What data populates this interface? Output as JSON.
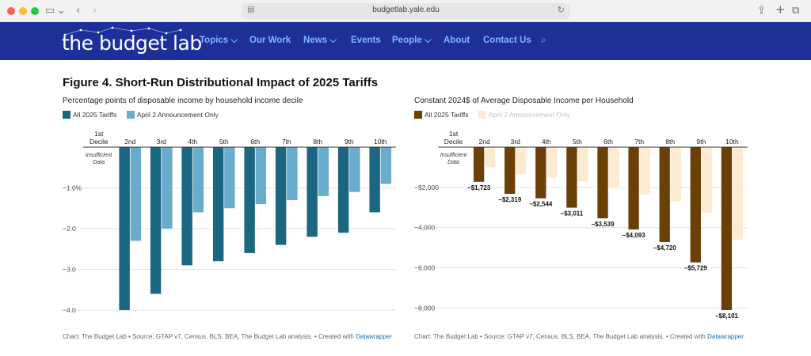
{
  "browser": {
    "url": "budgetlab.yale.edu",
    "colors": {
      "red": "#ff5f57",
      "yellow": "#febc2e",
      "green": "#28c840"
    }
  },
  "site": {
    "logo_text": "the budget lab",
    "nav": [
      "Topics ⌵",
      "Our Work",
      "News ⌵",
      "Events",
      "People ⌵",
      "About",
      "Contact Us"
    ],
    "nav_bg": "#1e2f9a",
    "nav_color": "#7fb8ff"
  },
  "figure": {
    "title": "Figure 4. Short-Run Distributional Impact of 2025 Tariffs"
  },
  "chart_data": [
    {
      "type": "bar",
      "title": "Percentage points of disposable income by household income decile",
      "categories": [
        "1st Decile",
        "2nd",
        "3rd",
        "4th",
        "5th",
        "6th",
        "7th",
        "8th",
        "9th",
        "10th"
      ],
      "series": [
        {
          "name": "All 2025 Tariffs",
          "color": "#1b6681",
          "values": [
            null,
            -4.0,
            -3.6,
            -2.9,
            -2.8,
            -2.6,
            -2.4,
            -2.2,
            -2.1,
            -1.6
          ]
        },
        {
          "name": "April 2 Announcement Only",
          "color": "#6aaccb",
          "values": [
            null,
            -2.3,
            -2.0,
            -1.6,
            -1.5,
            -1.4,
            -1.3,
            -1.2,
            -1.1,
            -0.9
          ]
        }
      ],
      "yticks": [
        -1.0,
        -2.0,
        -3.0,
        -4.0
      ],
      "ytick_labels": [
        "−1.0%",
        "−2.0",
        "−3.0",
        "−4.0"
      ],
      "ylim": [
        -4.0,
        0
      ],
      "insufficient_note": "Insufficient Data",
      "source": "Chart: The Budget Lab • Source: GTAP v7, Census, BLS, BEA, The Budget Lab analysis. • Created with ",
      "source_link": "Datawrapper"
    },
    {
      "type": "bar",
      "title": "Constant 2024$ of Average Disposable Income per Household",
      "categories": [
        "1st Decile",
        "2nd",
        "3rd",
        "4th",
        "5th",
        "6th",
        "7th",
        "8th",
        "9th",
        "10th"
      ],
      "series": [
        {
          "name": "All 2025 Tariffs",
          "color": "#6b3f06",
          "values": [
            null,
            -1723,
            -2319,
            -2544,
            -3011,
            -3539,
            -4093,
            -4720,
            -5729,
            -8101
          ]
        },
        {
          "name": "April 2 Announcement Only",
          "color": "#fcebd2",
          "values": [
            null,
            -1000,
            -1350,
            -1500,
            -1700,
            -2000,
            -2350,
            -2700,
            -3250,
            -4600
          ]
        }
      ],
      "data_labels": [
        "",
        "−$1,723",
        "−$2,319",
        "−$2,544",
        "−$3,011",
        "−$3,539",
        "−$4,093",
        "−$4,720",
        "−$5,729",
        "−$8,101"
      ],
      "yticks": [
        -2000,
        -4000,
        -6000,
        -8000
      ],
      "ytick_labels": [
        "−$2,000",
        "−4,000",
        "−6,000",
        "−8,000"
      ],
      "ylim": [
        -8101,
        0
      ],
      "insufficient_note": "Insufficient Data",
      "source": "Chart: The Budget Lab • Source: GTAP v7, Census, BLS, BEA, The Budget Lab analysis. • Created with ",
      "source_link": "Datawrapper"
    }
  ]
}
